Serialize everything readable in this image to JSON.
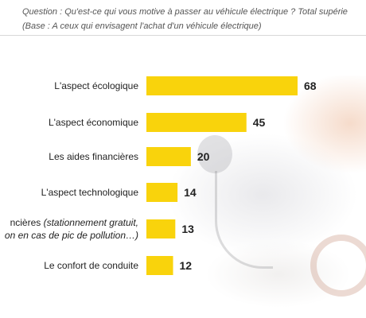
{
  "question_line1": "Question : Qu'est-ce qui vous motive à passer au véhicule électrique ? Total supérie",
  "question_line2": "(Base : A ceux qui envisagent l'achat d'un véhicule électrique)",
  "colors": {
    "bar": "#f9d30c",
    "text": "#222222",
    "question": "#555555"
  },
  "chart_data": {
    "type": "bar",
    "orientation": "horizontal",
    "categories": [
      [
        "L'aspect écologique"
      ],
      [
        "L'aspect économique"
      ],
      [
        "Les aides financières"
      ],
      [
        "L'aspect technologique"
      ],
      [
        "ncières ",
        "(stationnement gratuit,",
        "on en cas de pic de pollution…)"
      ],
      [
        "Le confort de conduite"
      ]
    ],
    "values": [
      68,
      45,
      20,
      14,
      13,
      12
    ],
    "xlim": [
      0,
      68
    ]
  }
}
